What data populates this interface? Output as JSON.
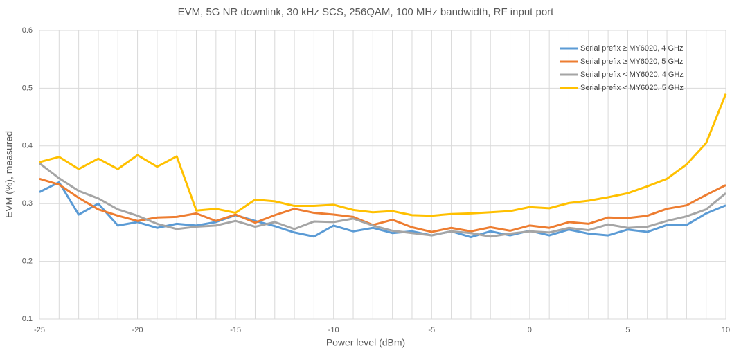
{
  "chart_data": {
    "type": "line",
    "title": "EVM, 5G NR downlink, 30 kHz SCS, 256QAM, 100 MHz bandwidth, RF input port",
    "xlabel": "Power level (dBm)",
    "ylabel": "EVM (%), measured",
    "x": [
      -25,
      -24,
      -23,
      -22,
      -21,
      -20,
      -19,
      -18,
      -17,
      -16,
      -15,
      -14,
      -13,
      -12,
      -11,
      -10,
      -9,
      -8,
      -7,
      -6,
      -5,
      -4,
      -3,
      -2,
      -1,
      0,
      1,
      2,
      3,
      4,
      5,
      6,
      7,
      8,
      9,
      10
    ],
    "xlim": [
      -25,
      10
    ],
    "xticks": [
      -25,
      -20,
      -15,
      -10,
      -5,
      0,
      5,
      10
    ],
    "ylim": [
      0.1,
      0.6
    ],
    "yticks": [
      0.1,
      0.2,
      0.3,
      0.4,
      0.5,
      0.6
    ],
    "grid": true,
    "legend": "top-right",
    "series": [
      {
        "name": "Serial prefix ≥ MY6020, 4 GHz",
        "color": "#5b9bd5",
        "values": [
          0.32,
          0.337,
          0.281,
          0.3,
          0.262,
          0.268,
          0.258,
          0.265,
          0.262,
          0.268,
          0.28,
          0.27,
          0.261,
          0.25,
          0.243,
          0.262,
          0.252,
          0.258,
          0.249,
          0.252,
          0.245,
          0.252,
          0.242,
          0.252,
          0.245,
          0.253,
          0.245,
          0.255,
          0.248,
          0.245,
          0.255,
          0.251,
          0.263,
          0.263,
          0.283,
          0.297
        ]
      },
      {
        "name": "Serial prefix ≥ MY6020, 5 GHz",
        "color": "#ed7d31",
        "values": [
          0.343,
          0.333,
          0.31,
          0.29,
          0.279,
          0.27,
          0.276,
          0.277,
          0.283,
          0.27,
          0.281,
          0.267,
          0.28,
          0.291,
          0.284,
          0.281,
          0.277,
          0.263,
          0.272,
          0.259,
          0.251,
          0.258,
          0.252,
          0.259,
          0.253,
          0.262,
          0.258,
          0.268,
          0.265,
          0.276,
          0.275,
          0.279,
          0.291,
          0.297,
          0.315,
          0.332
        ]
      },
      {
        "name": "Serial prefix < MY6020, 4 GHz",
        "color": "#a5a5a5",
        "values": [
          0.37,
          0.344,
          0.322,
          0.309,
          0.29,
          0.279,
          0.265,
          0.256,
          0.26,
          0.262,
          0.27,
          0.26,
          0.268,
          0.256,
          0.269,
          0.268,
          0.274,
          0.262,
          0.253,
          0.249,
          0.245,
          0.252,
          0.249,
          0.243,
          0.248,
          0.252,
          0.25,
          0.258,
          0.254,
          0.264,
          0.258,
          0.26,
          0.27,
          0.278,
          0.29,
          0.318
        ]
      },
      {
        "name": "Serial prefix < MY6020, 5 GHz",
        "color": "#ffc000",
        "values": [
          0.372,
          0.381,
          0.36,
          0.378,
          0.36,
          0.384,
          0.364,
          0.382,
          0.288,
          0.291,
          0.284,
          0.307,
          0.304,
          0.296,
          0.296,
          0.298,
          0.289,
          0.285,
          0.287,
          0.28,
          0.279,
          0.282,
          0.283,
          0.285,
          0.287,
          0.294,
          0.292,
          0.301,
          0.305,
          0.311,
          0.318,
          0.33,
          0.343,
          0.368,
          0.405,
          0.49
        ]
      }
    ]
  }
}
